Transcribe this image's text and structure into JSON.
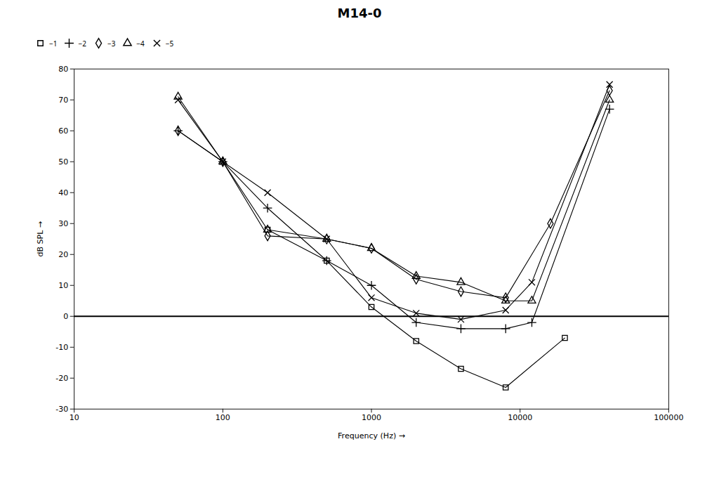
{
  "chart_data": {
    "type": "line",
    "title": "M14-0",
    "xlabel": "Frequency (Hz)",
    "ylabel": "dB SPL",
    "log": "x",
    "xlim": [
      10,
      100000
    ],
    "ylim": [
      -30,
      80
    ],
    "xticks": [
      10,
      100,
      1000,
      10000,
      100000
    ],
    "yticks": [
      -30,
      -20,
      -10,
      0,
      10,
      20,
      30,
      40,
      50,
      60,
      70,
      80
    ],
    "hline_y": 0,
    "grid": false,
    "legend": "top",
    "series": [
      {
        "name": "−1",
        "color": "black",
        "marker": "square",
        "x": [
          200,
          500,
          1000,
          2000,
          4000,
          8000,
          20000
        ],
        "values": [
          28,
          18,
          3,
          -8,
          -17,
          -23,
          -7
        ]
      },
      {
        "name": "−2",
        "color": "black",
        "marker": "plus",
        "x": [
          50,
          100,
          200,
          500,
          1000,
          2000,
          4000,
          8000,
          12000,
          40000
        ],
        "values": [
          60,
          50,
          35,
          18,
          10,
          -2,
          -4,
          -4,
          -2,
          67
        ]
      },
      {
        "name": "−3",
        "color": "black",
        "marker": "diamond",
        "x": [
          50,
          100,
          200,
          500,
          1000,
          2000,
          4000,
          8000,
          16000,
          40000
        ],
        "values": [
          60,
          50,
          26,
          25,
          22,
          12,
          8,
          6,
          30,
          73
        ]
      },
      {
        "name": "−4",
        "color": "black",
        "marker": "triangle",
        "x": [
          50,
          100,
          200,
          500,
          1000,
          2000,
          4000,
          8000,
          12000,
          40000
        ],
        "values": [
          71,
          50,
          28,
          25,
          22,
          13,
          11,
          5,
          5,
          70
        ]
      },
      {
        "name": "−5",
        "color": "black",
        "marker": "x",
        "x": [
          50,
          100,
          200,
          500,
          1000,
          2000,
          4000,
          8000,
          12000,
          40000
        ],
        "values": [
          70,
          50,
          40,
          25,
          6,
          1,
          -1,
          2,
          11,
          75
        ]
      }
    ]
  }
}
